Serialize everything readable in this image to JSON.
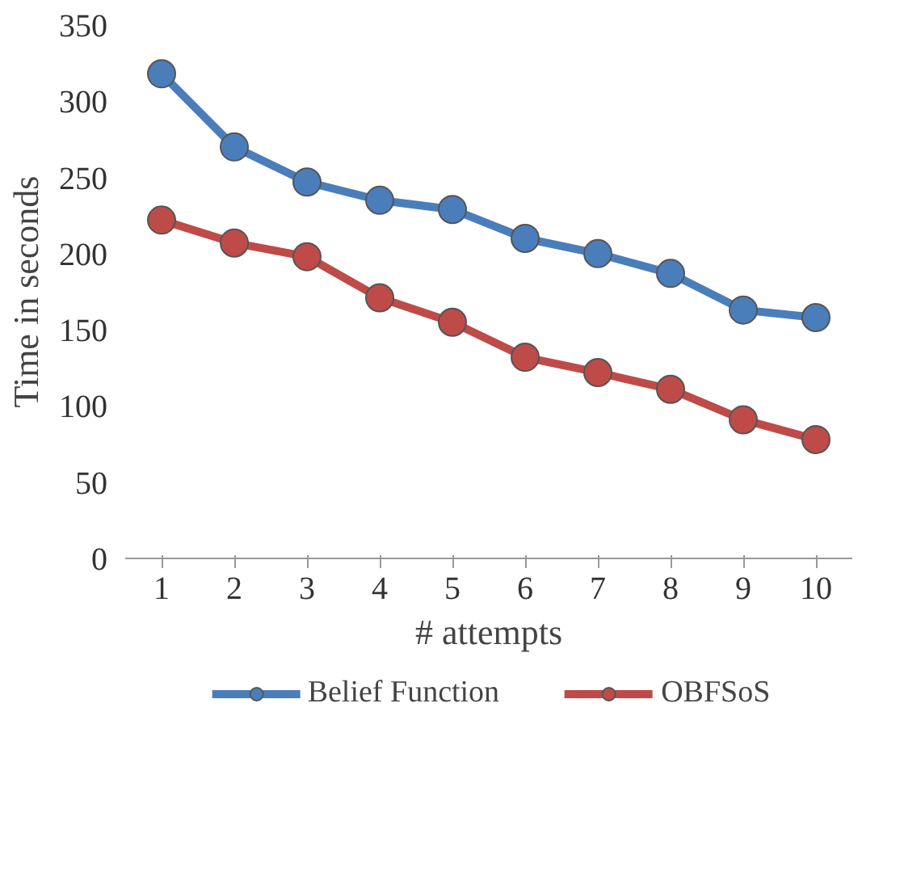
{
  "chart_data": {
    "type": "line",
    "xlabel": "# attempts",
    "ylabel": "Time in seconds",
    "categories": [
      "1",
      "2",
      "3",
      "4",
      "5",
      "6",
      "7",
      "8",
      "9",
      "10"
    ],
    "ylim": [
      0,
      350
    ],
    "yticks": [
      0,
      50,
      100,
      150,
      200,
      250,
      300,
      350
    ],
    "grid": false,
    "legend": "bottom",
    "marker": "circle",
    "line_style": "solid",
    "series": [
      {
        "name": "Belief Function",
        "color": "#4a7ebb",
        "values": [
          318,
          270,
          247,
          235,
          229,
          210,
          200,
          187,
          163,
          158
        ]
      },
      {
        "name": "OBFSoS",
        "color": "#be4b48",
        "values": [
          222,
          207,
          198,
          171,
          155,
          132,
          122,
          111,
          91,
          78
        ]
      }
    ]
  }
}
